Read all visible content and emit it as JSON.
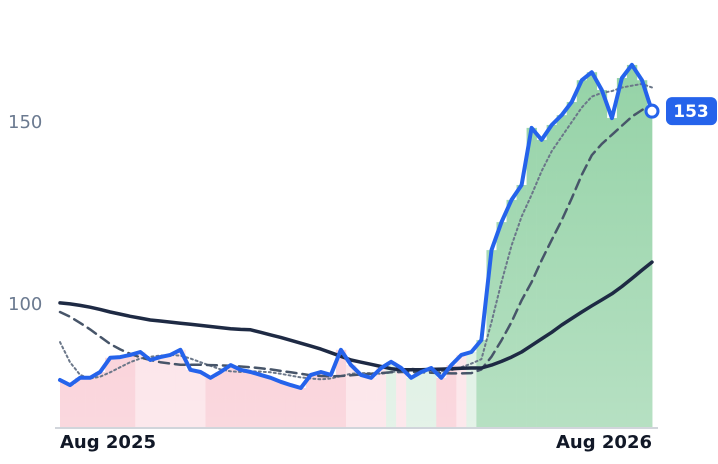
{
  "chart_data": {
    "type": "line",
    "categories": [
      "Aug 2025",
      null,
      null,
      null,
      null,
      null,
      null,
      null,
      null,
      null,
      null,
      null,
      null,
      null,
      null,
      null,
      null,
      null,
      null,
      null,
      null,
      null,
      null,
      null,
      null,
      null,
      null,
      null,
      null,
      null,
      null,
      null,
      null,
      null,
      null,
      null,
      null,
      null,
      null,
      null,
      null,
      null,
      null,
      null,
      null,
      null,
      null,
      null,
      null,
      null,
      null,
      null,
      null,
      null,
      null,
      null,
      null,
      null,
      null,
      "Aug 2026"
    ],
    "ylim": [
      67,
      183
    ],
    "yticks": [
      100,
      150
    ],
    "grid": false,
    "series": [
      {
        "color": "#2563eb",
        "style": "solid",
        "width": 4,
        "values": [
          79.1,
          77.7,
          79.7,
          79.7,
          81.3,
          85.2,
          85.4,
          86,
          86.8,
          84.6,
          85.4,
          86,
          87.4,
          81.9,
          81.3,
          79.7,
          81.3,
          83.2,
          81.9,
          81.3,
          80.5,
          79.7,
          78.6,
          77.7,
          76.9,
          80.5,
          81.3,
          80.5,
          87.4,
          83.2,
          80.5,
          79.7,
          82.4,
          84.1,
          82.4,
          79.7,
          81.3,
          82.4,
          79.7,
          83.2,
          86,
          86.8,
          90.1,
          114.8,
          122.5,
          128.6,
          132.7,
          148.4,
          145.1,
          149.2,
          151.9,
          155.5,
          161.5,
          163.7,
          158.8,
          151.1,
          162.1,
          165.7,
          161.5,
          153
        ]
      },
      {
        "color": "#1e2a44",
        "style": "solid",
        "width": 3.5,
        "values": [
          100.3,
          100.0,
          99.6,
          99.1,
          98.5,
          97.8,
          97.2,
          96.6,
          96.1,
          95.6,
          95.3,
          95.0,
          94.7,
          94.4,
          94.1,
          93.8,
          93.5,
          93.2,
          93.0,
          92.9,
          92.2,
          91.5,
          90.8,
          90.0,
          89.2,
          88.4,
          87.6,
          86.6,
          85.6,
          84.6,
          84.0,
          83.4,
          82.8,
          82.2,
          81.9,
          81.9,
          81.9,
          82.0,
          82.1,
          82.2,
          82.3,
          82.4,
          82.4,
          83.2,
          84.2,
          85.4,
          86.8,
          88.6,
          90.4,
          92.2,
          94.2,
          96.0,
          97.8,
          99.5,
          101.1,
          102.8,
          104.8,
          107.0,
          109.3,
          111.5
        ]
      },
      {
        "color": "#475569",
        "style": "dashed",
        "width": 2.5,
        "values": [
          97.8,
          96.5,
          94.8,
          93.0,
          91.0,
          89.0,
          87.5,
          86.3,
          85.3,
          84.6,
          84.0,
          83.6,
          83.3,
          83.3,
          83.3,
          83.2,
          83.1,
          83.0,
          82.8,
          82.6,
          82.3,
          82.0,
          81.6,
          81.2,
          80.8,
          80.4,
          80.2,
          80.1,
          80.2,
          80.4,
          80.6,
          80.8,
          81.0,
          81.2,
          81.3,
          81.3,
          81.2,
          81.1,
          81.0,
          80.9,
          80.9,
          81.0,
          82.0,
          85.5,
          90.0,
          95.0,
          101.0,
          106.0,
          112.0,
          117.6,
          123.0,
          129.0,
          135.5,
          140.9,
          144.0,
          146.5,
          149.0,
          151.5,
          153.3,
          154.7
        ]
      },
      {
        "color": "#6b7789",
        "style": "dotted",
        "width": 2,
        "values": [
          89.5,
          84.0,
          80.5,
          79.5,
          80.0,
          81.2,
          82.6,
          84.0,
          85.0,
          85.5,
          85.8,
          86.0,
          85.8,
          85.0,
          84.0,
          83.0,
          82.0,
          81.5,
          81.3,
          81.5,
          81.4,
          81.2,
          80.8,
          80.3,
          79.8,
          79.5,
          79.3,
          79.5,
          80.2,
          80.8,
          81.0,
          81.0,
          80.8,
          81.2,
          81.8,
          82.2,
          82.0,
          81.6,
          81.5,
          81.8,
          82.6,
          83.6,
          84.8,
          95.0,
          106.0,
          116.0,
          124.0,
          130.0,
          136.5,
          142.0,
          146.0,
          150.0,
          154.0,
          157.0,
          158.0,
          158.5,
          159.5,
          160.0,
          160.5,
          159.5
        ]
      }
    ],
    "bar_colors": [
      "#f8c3cd",
      "#f8c3cd",
      "#f8c3cd",
      "#f8c3cd",
      "#f8c3cd",
      "#f8c3cd",
      "#f8c3cd",
      "#f8c3cd",
      "#fbdce2",
      "#fbdce2",
      "#fbdce2",
      "#fbdce2",
      "#fbdce2",
      "#fbdce2",
      "#fbdce2",
      "#f8c3cd",
      "#f8c3cd",
      "#f8c3cd",
      "#f8c3cd",
      "#f8c3cd",
      "#f8c3cd",
      "#f8c3cd",
      "#f8c3cd",
      "#f8c3cd",
      "#f8c3cd",
      "#f8c3cd",
      "#f8c3cd",
      "#f8c3cd",
      "#f8c3cd",
      "#fbdce2",
      "#fbdce2",
      "#fbdce2",
      "#fbdce2",
      "#d5ecdc",
      "#fbdce2",
      "#d5ecdc",
      "#d5ecdc",
      "#d5ecdc",
      "#f8c3cd",
      "#f8c3cd",
      "#fbdce2",
      "#d5ecdc",
      "#8fd0a2",
      "#8fd0a2",
      "#8fd0a2",
      "#8fd0a2",
      "#8fd0a2",
      "#8fd0a2",
      "#8fd0a2",
      "#8fd0a2",
      "#8fd0a2",
      "#8fd0a2",
      "#8fd0a2",
      "#8fd0a2",
      "#8fd0a2",
      "#8fd0a2",
      "#8fd0a2",
      "#8fd0a2",
      "#8fd0a2",
      "#8fd0a2"
    ]
  }
}
